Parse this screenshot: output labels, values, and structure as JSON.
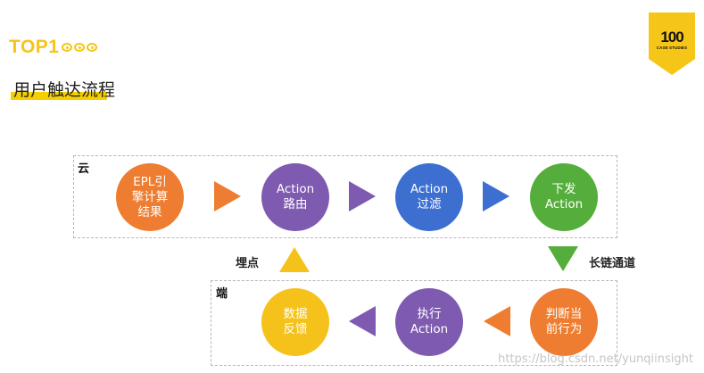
{
  "header": {
    "logo_text": "TOP1",
    "badge_number": "100",
    "badge_caption": "CASE STUDIES",
    "title": "用户触达流程"
  },
  "regions": {
    "cloud_label": "云",
    "client_label": "端"
  },
  "nodes": {
    "epl": {
      "label": "EPL引\n擎计算\n结果",
      "color": "#ee7d31"
    },
    "action_route": {
      "label": "Action\n路由",
      "color": "#7e5ab0"
    },
    "action_filter": {
      "label": "Action\n过滤",
      "color": "#3d6fd1"
    },
    "dispatch": {
      "label": "下发\nAction",
      "color": "#55ad3b"
    },
    "judge": {
      "label": "判断当\n前行为",
      "color": "#ee7d31"
    },
    "execute": {
      "label": "执行\nAction",
      "color": "#7e5ab0"
    },
    "data_feedback": {
      "label": "数据\n反馈",
      "color": "#f5c21c"
    }
  },
  "connectors": {
    "embed_label": "埋点",
    "long_link_label": "长链通道"
  },
  "colors": {
    "orange": "#ee7d31",
    "purple": "#7e5ab0",
    "blue": "#3d6fd1",
    "green": "#55ad3b",
    "yellow": "#f5c21c",
    "brand_yellow": "#f5c518"
  },
  "watermark": "https://blog.csdn.net/yunqiinsight"
}
